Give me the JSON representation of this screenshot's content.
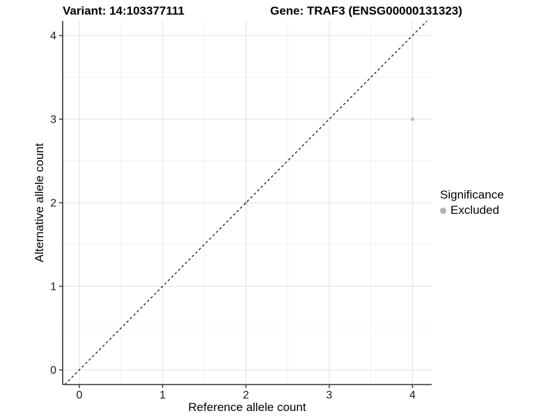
{
  "chart_data": {
    "type": "scatter",
    "title_left": "Variant: 14:103377111",
    "title_right": "Gene: TRAF3 (ENSG00000131323)",
    "xlabel": "Reference allele count",
    "ylabel": "Alternative allele count",
    "xlim": [
      -0.2,
      4.23
    ],
    "ylim": [
      -0.175,
      4.175
    ],
    "xticks": [
      0,
      1,
      2,
      3,
      4
    ],
    "yticks": [
      0,
      1,
      2,
      3,
      4
    ],
    "minor_xticks": [
      0.5,
      1.5,
      2.5,
      3.5
    ],
    "minor_yticks": [
      0.5,
      1.5,
      2.5,
      3.5
    ],
    "grid": "major+minor",
    "identity_line": {
      "type": "abline",
      "slope": 1,
      "intercept": 0,
      "style": "dashed",
      "color": "#000000"
    },
    "series": [
      {
        "name": "Excluded",
        "color": "#bfbfbf",
        "points": [
          [
            2,
            2
          ],
          [
            4,
            3
          ]
        ]
      }
    ],
    "legend": {
      "position": "right",
      "title": "Significance",
      "items": [
        {
          "label": "Excluded",
          "color": "#b3b3b3"
        }
      ]
    },
    "colors": {
      "major_grid": "#e6e6e6",
      "minor_grid": "#f2f2f2",
      "axis_line": "#333333",
      "tick_label": "#1a1a1a"
    }
  }
}
